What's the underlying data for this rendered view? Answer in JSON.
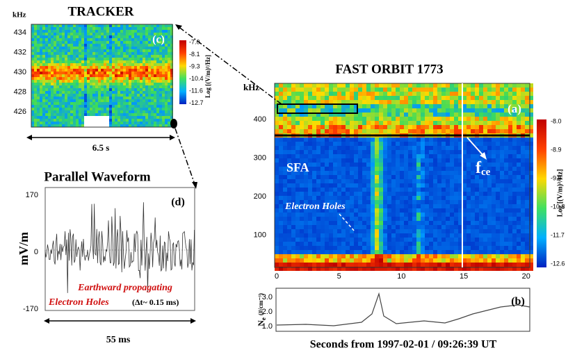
{
  "panel_a": {
    "title": "FAST ORBIT 1773",
    "y_unit": "kHz",
    "yticks": [
      "400",
      "300",
      "200",
      "100"
    ],
    "xticks": [
      "0",
      "5",
      "10",
      "15",
      "20"
    ],
    "label": "(a)",
    "region": "SFA",
    "fce": {
      "symbol": "f",
      "subscript": "ce"
    },
    "annotation": "Electron Holes",
    "colorbar_label": "Log [(V/m)²/Hz]",
    "colorbar_ticks": [
      "-8.0",
      "-8.9",
      "-9.9",
      "-10.8",
      "-11.7",
      "-12.6"
    ]
  },
  "panel_b": {
    "label": "(b)",
    "yticks": [
      "3.0",
      "2.0",
      "1.0"
    ],
    "ylabel": {
      "symbol": "N",
      "subscript": "e",
      "unit": "(#/cm⁻³)"
    }
  },
  "x_axis_label": "Seconds from 1997-02-01 / 09:26:39 UT",
  "panel_c": {
    "title": "TRACKER",
    "y_unit": "kHz",
    "yticks": [
      "434",
      "432",
      "430",
      "428",
      "426"
    ],
    "label": "(c)",
    "colorbar_label": "Log [(V/m)²/Hz]",
    "colorbar_ticks": [
      "-7.0",
      "-8.1",
      "-9.3",
      "-10.4",
      "-11.6",
      "-12.7"
    ],
    "span": "6.5 s"
  },
  "panel_d": {
    "title": "Parallel  Waveform",
    "label": "(d)",
    "ylabel": "mV/m",
    "yticks": [
      "170",
      "0",
      "-170"
    ],
    "note_line1": "Earthward propagating",
    "note_line2": "Electron Holes",
    "note_dt": "(Δt~ 0.15 ms)",
    "span": "55 ms"
  }
}
